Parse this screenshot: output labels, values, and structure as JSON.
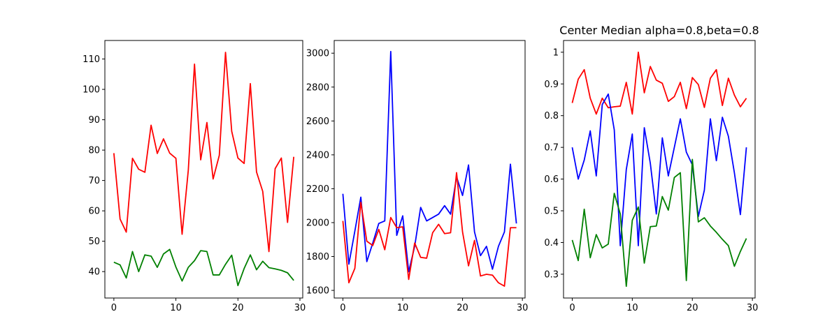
{
  "chart_data": [
    {
      "type": "line",
      "title": "",
      "xlabel": "",
      "ylabel": "",
      "xlim": [
        -1.45,
        30.45
      ],
      "ylim": [
        31.3,
        116.1
      ],
      "xticks": [
        0,
        10,
        20,
        30
      ],
      "yticks": [
        40,
        50,
        60,
        70,
        80,
        90,
        100,
        110
      ],
      "x": [
        0,
        1,
        2,
        3,
        4,
        5,
        6,
        7,
        8,
        9,
        10,
        11,
        12,
        13,
        14,
        15,
        16,
        17,
        18,
        19,
        20,
        21,
        22,
        23,
        24,
        25,
        26,
        27,
        28,
        29
      ],
      "series": [
        {
          "color": "#ff0000",
          "values": [
            79.0,
            57.3,
            53.0,
            77.3,
            73.7,
            72.7,
            88.2,
            78.9,
            83.7,
            79.0,
            77.3,
            52.3,
            73.4,
            108.3,
            76.8,
            89.1,
            70.5,
            78.3,
            112.2,
            86.2,
            77.4,
            75.6,
            101.9,
            72.8,
            66.4,
            46.6,
            73.9,
            77.4,
            56.2,
            77.8
          ]
        },
        {
          "color": "#008000",
          "values": [
            43.1,
            42.2,
            37.9,
            46.6,
            40.0,
            45.5,
            45.1,
            41.4,
            45.8,
            47.3,
            41.5,
            36.9,
            41.4,
            43.6,
            46.9,
            46.6,
            38.9,
            38.9,
            42.4,
            45.4,
            35.4,
            41.0,
            45.5,
            40.6,
            43.4,
            41.3,
            40.9,
            40.4,
            39.6,
            37.1
          ]
        }
      ]
    },
    {
      "type": "line",
      "title": "",
      "xlabel": "",
      "ylabel": "",
      "xlim": [
        -1.45,
        30.45
      ],
      "ylim": [
        1555,
        3075
      ],
      "xticks": [
        0,
        10,
        20,
        30
      ],
      "yticks": [
        1600,
        1800,
        2000,
        2200,
        2400,
        2600,
        2800,
        3000
      ],
      "x": [
        0,
        1,
        2,
        3,
        4,
        5,
        6,
        7,
        8,
        9,
        10,
        11,
        12,
        13,
        14,
        15,
        16,
        17,
        18,
        19,
        20,
        21,
        22,
        23,
        24,
        25,
        26,
        27,
        28,
        29
      ],
      "series": [
        {
          "color": "#0000ff",
          "values": [
            2170,
            1755,
            1950,
            2150,
            1770,
            1880,
            1995,
            2010,
            3010,
            1925,
            2040,
            1710,
            1860,
            2090,
            2010,
            2030,
            2050,
            2100,
            2050,
            2270,
            2160,
            2340,
            1945,
            1805,
            1860,
            1725,
            1860,
            1945,
            2345,
            1995
          ]
        },
        {
          "color": "#ff0000",
          "values": [
            2010,
            1645,
            1730,
            2120,
            1890,
            1865,
            1960,
            1840,
            2030,
            1970,
            1975,
            1665,
            1880,
            1795,
            1790,
            1940,
            1990,
            1935,
            1940,
            2295,
            1945,
            1745,
            1895,
            1685,
            1695,
            1690,
            1645,
            1625,
            1970,
            1970
          ]
        }
      ]
    },
    {
      "type": "line",
      "title": "Center Median alpha=0.8,beta=0.8",
      "xlabel": "",
      "ylabel": "",
      "xlim": [
        -1.45,
        30.45
      ],
      "ylim": [
        0.225,
        1.037
      ],
      "xticks": [
        0,
        10,
        20,
        30
      ],
      "yticks": [
        0.3,
        0.4,
        0.5,
        0.6,
        0.7,
        0.8,
        0.9,
        1.0
      ],
      "x": [
        0,
        1,
        2,
        3,
        4,
        5,
        6,
        7,
        8,
        9,
        10,
        11,
        12,
        13,
        14,
        15,
        16,
        17,
        18,
        19,
        20,
        21,
        22,
        23,
        24,
        25,
        26,
        27,
        28,
        29
      ],
      "series": [
        {
          "color": "#ff0000",
          "values": [
            0.84,
            0.915,
            0.945,
            0.855,
            0.805,
            0.855,
            0.825,
            0.828,
            0.83,
            0.905,
            0.805,
            1.0,
            0.872,
            0.955,
            0.912,
            0.902,
            0.845,
            0.86,
            0.905,
            0.822,
            0.92,
            0.898,
            0.826,
            0.918,
            0.945,
            0.832,
            0.918,
            0.865,
            0.828,
            0.855
          ]
        },
        {
          "color": "#0000ff",
          "values": [
            0.7,
            0.6,
            0.66,
            0.752,
            0.61,
            0.835,
            0.868,
            0.755,
            0.39,
            0.63,
            0.742,
            0.39,
            0.762,
            0.65,
            0.49,
            0.73,
            0.61,
            0.7,
            0.79,
            0.685,
            0.645,
            0.482,
            0.565,
            0.79,
            0.658,
            0.795,
            0.735,
            0.62,
            0.488,
            0.7
          ]
        },
        {
          "color": "#008000",
          "values": [
            0.408,
            0.343,
            0.505,
            0.352,
            0.425,
            0.383,
            0.395,
            0.555,
            0.49,
            0.262,
            0.47,
            0.512,
            0.335,
            0.45,
            0.452,
            0.545,
            0.502,
            0.605,
            0.62,
            0.28,
            0.662,
            0.465,
            0.478,
            0.452,
            0.432,
            0.41,
            0.39,
            0.325,
            0.372,
            0.413
          ]
        }
      ]
    }
  ]
}
